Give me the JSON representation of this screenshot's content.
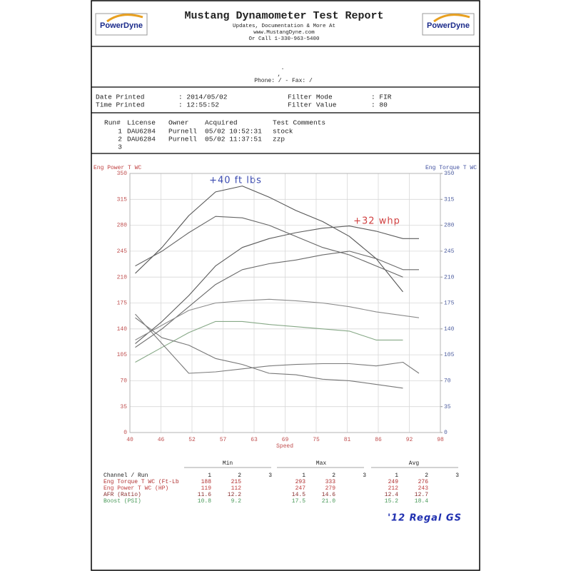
{
  "header": {
    "logo": "PowerDyne",
    "title": "Mustang Dynamometer Test Report",
    "lines": [
      "Updates, Documentation & More At",
      "www.MustangDyne.com",
      "Or Call 1-330-963-5400"
    ]
  },
  "customer": {
    "name": ".",
    "address": ",",
    "contact": "Phone:  /  - Fax:  /"
  },
  "info": {
    "rows": [
      [
        "Date Printed",
        ": 2014/05/02",
        "Filter Mode",
        ": FIR"
      ],
      [
        "Time Printed",
        ": 12:55:52",
        "Filter Value",
        ": 80"
      ]
    ]
  },
  "runs": {
    "header": [
      "Run#",
      "License",
      "Owner",
      "Acquired",
      "Test Comments"
    ],
    "rows": [
      [
        "1",
        "DAU6284",
        "Purnell",
        "05/02 10:52:31",
        "stock"
      ],
      [
        "2",
        "DAU6284",
        "Purnell",
        "05/02 11:37:51",
        "zzp"
      ],
      [
        "3"
      ]
    ]
  },
  "chart_data": {
    "type": "line",
    "xlabel": "Speed",
    "ylabel": "Eng Power T WC",
    "y2label": "Eng Torque T WC",
    "x": [
      41,
      46,
      51,
      56,
      61,
      66,
      71,
      76,
      81,
      86,
      91,
      94
    ],
    "xlim": [
      40,
      98
    ],
    "xticks": [
      40,
      {
        "value": 45.8,
        "label": "46"
      },
      {
        "value": 51.6,
        "label": "52"
      },
      {
        "value": 57.4,
        "label": "57"
      },
      {
        "value": 63.2,
        "label": "63"
      },
      69,
      {
        "value": 74.8,
        "label": "75"
      },
      {
        "value": 80.6,
        "label": "81"
      },
      {
        "value": 86.4,
        "label": "86"
      },
      {
        "value": 92.2,
        "label": "92"
      },
      98
    ],
    "ylim": [
      0,
      350
    ],
    "yticks": [
      0,
      35,
      70,
      105,
      140,
      175,
      210,
      245,
      280,
      315,
      350
    ],
    "y2lim": [
      0,
      350
    ],
    "y2ticks": [
      0,
      35,
      70,
      105,
      140,
      175,
      210,
      245,
      280,
      315,
      350
    ],
    "grid": true,
    "series": [
      {
        "color": "#555555",
        "axis": "y2",
        "values": [
          215,
          250,
          293,
          325,
          333,
          318,
          300,
          285,
          265,
          235,
          190,
          null
        ]
      },
      {
        "color": "#666666",
        "axis": "y2",
        "values": [
          225,
          245,
          270,
          292,
          290,
          280,
          265,
          250,
          240,
          225,
          210,
          null
        ]
      },
      {
        "color": "#5a5a5a",
        "values": [
          120,
          150,
          185,
          225,
          250,
          262,
          270,
          276,
          279,
          272,
          262,
          262
        ]
      },
      {
        "color": "#6a6a6a",
        "values": [
          115,
          140,
          170,
          200,
          220,
          228,
          233,
          240,
          245,
          235,
          220,
          220
        ]
      },
      {
        "color": "#8a8a8a",
        "values": [
          125,
          145,
          165,
          175,
          178,
          180,
          178,
          175,
          170,
          163,
          158,
          155
        ]
      },
      {
        "color": "#86a886",
        "values": [
          95,
          115,
          135,
          150,
          150,
          146,
          143,
          140,
          137,
          125,
          125,
          null
        ]
      },
      {
        "color": "#777777",
        "values": [
          155,
          128,
          118,
          100,
          92,
          80,
          78,
          72,
          70,
          65,
          60,
          null
        ]
      },
      {
        "color": "#7a7a7a",
        "values": [
          160,
          120,
          80,
          82,
          86,
          90,
          92,
          93,
          93,
          90,
          95,
          80
        ]
      }
    ],
    "annotations": [
      "+40 ft lbs",
      "+32 whp"
    ]
  },
  "stats": {
    "groups": [
      "Min",
      "Max",
      "Avg"
    ],
    "header": [
      "Channel / Run",
      "1",
      "2",
      "3",
      "1",
      "2",
      "3",
      "1",
      "2",
      "3"
    ],
    "rows": [
      {
        "label": "Eng Torque T WC (Ft-Lb",
        "color": "#b03030",
        "values": [
          "188",
          "215",
          "293",
          "333",
          "249",
          "276"
        ]
      },
      {
        "label": "Eng Power T WC (HP)",
        "color": "#c04040",
        "values": [
          "119",
          "112",
          "247",
          "279",
          "212",
          "243"
        ]
      },
      {
        "label": "AFR (Ratio)",
        "color": "#8a3030",
        "values": [
          "11.6",
          "12.2",
          "14.5",
          "14.6",
          "12.4",
          "12.7"
        ]
      },
      {
        "label": "Boost (PSI)",
        "color": "#4a9a5a",
        "values": [
          "10.8",
          "9.2",
          "17.5",
          "21.0",
          "15.2",
          "18.4"
        ]
      }
    ]
  },
  "vehicle": "'12 Regal GS"
}
